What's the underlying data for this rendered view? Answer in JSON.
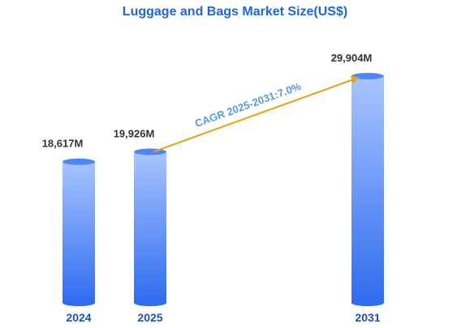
{
  "chart_data": {
    "type": "bar",
    "title": "Luggage and Bags Market Size(US$)",
    "categories": [
      "2024",
      "2025",
      "2031"
    ],
    "values": [
      18617,
      19926,
      29904
    ],
    "value_labels": [
      "18,617M",
      "19,926M",
      "29,904M"
    ],
    "unit": "M",
    "annotation": {
      "text": "CAGR 2025-2031:7.0%",
      "from_category": "2025",
      "to_category": "2031"
    },
    "colors": {
      "bar_top": "#a9c4ff",
      "bar_bottom": "#2f6df0",
      "bar_cap": "#4f86f5",
      "arrow": "#e8a20f",
      "title": "#1f63e6",
      "year_label": "#1f4fb8",
      "cagr_text": "#5b9bd5"
    },
    "grid": false,
    "legend": "none"
  }
}
